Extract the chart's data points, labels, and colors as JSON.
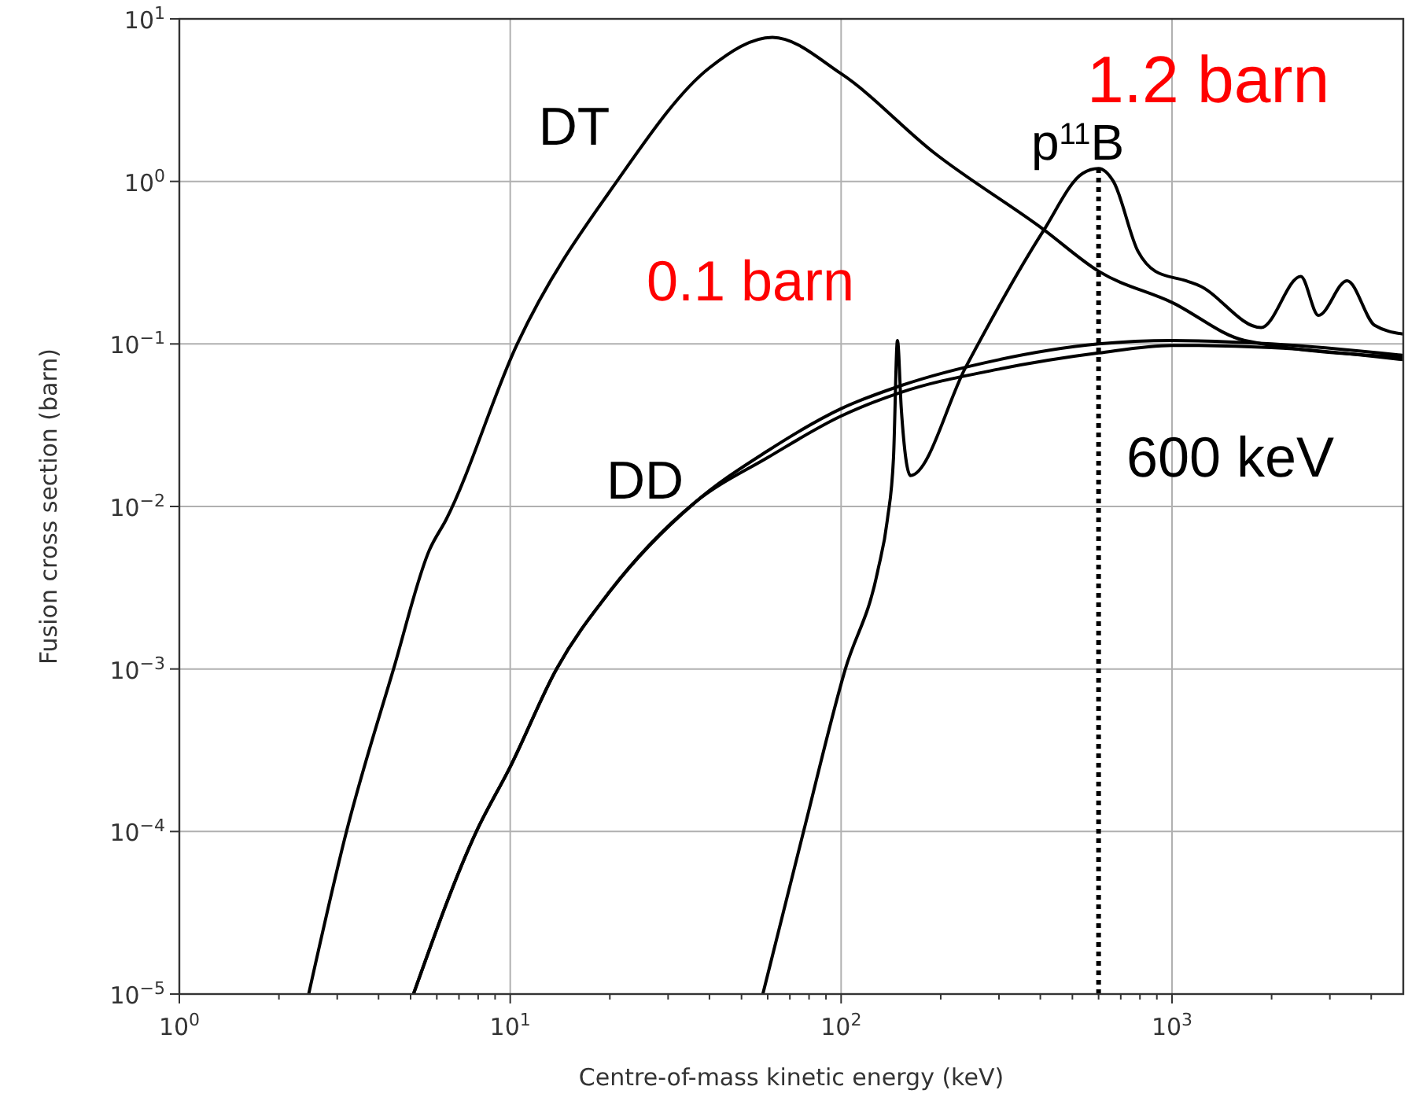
{
  "chart_data": {
    "type": "line",
    "xlabel": "Centre-of-mass kinetic energy (keV)",
    "ylabel": "Fusion cross section (barn)",
    "log": "xy",
    "grid": true,
    "legend": false,
    "marker": "none",
    "xlim": [
      1,
      5000
    ],
    "ylim": [
      1e-05,
      10
    ],
    "xticks": [
      {
        "value": 1,
        "label": "10$^{0}$"
      },
      {
        "value": 2,
        "label": null
      },
      {
        "value": 3,
        "label": null
      },
      {
        "value": 4,
        "label": null
      },
      {
        "value": 5,
        "label": null
      },
      {
        "value": 6,
        "label": null
      },
      {
        "value": 7,
        "label": null
      },
      {
        "value": 8,
        "label": null
      },
      {
        "value": 9,
        "label": null
      },
      {
        "value": 10,
        "label": "10$^{1}$"
      },
      {
        "value": 20,
        "label": null
      },
      {
        "value": 30,
        "label": null
      },
      {
        "value": 40,
        "label": null
      },
      {
        "value": 50,
        "label": null
      },
      {
        "value": 60,
        "label": null
      },
      {
        "value": 70,
        "label": null
      },
      {
        "value": 80,
        "label": null
      },
      {
        "value": 90,
        "label": null
      },
      {
        "value": 100,
        "label": "10$^{2}$"
      },
      {
        "value": 200,
        "label": null
      },
      {
        "value": 300,
        "label": null
      },
      {
        "value": 400,
        "label": null
      },
      {
        "value": 500,
        "label": null
      },
      {
        "value": 600,
        "label": null
      },
      {
        "value": 700,
        "label": null
      },
      {
        "value": 800,
        "label": null
      },
      {
        "value": 900,
        "label": null
      },
      {
        "value": 1000,
        "label": "10$^{3}$"
      },
      {
        "value": 2000,
        "label": null
      },
      {
        "value": 3000,
        "label": null
      },
      {
        "value": 4000,
        "label": null
      }
    ],
    "yticks": [
      {
        "value": 1e-05,
        "label": "10$^{−5}$"
      },
      {
        "value": 0.0001,
        "label": "10$^{−4}$"
      },
      {
        "value": 0.001,
        "label": "10$^{−3}$"
      },
      {
        "value": 0.01,
        "label": "10$^{−2}$"
      },
      {
        "value": 0.1,
        "label": "10$^{−1}$"
      },
      {
        "value": 1,
        "label": "10$^{0}$"
      },
      {
        "value": 10,
        "label": "10$^{1}$"
      }
    ],
    "series": [
      {
        "name": "DT",
        "color": "#000000",
        "x": [
          2.46,
          3.2,
          4.44,
          5.7,
          6.4,
          10.5,
          21,
          40,
          62,
          100,
          191,
          407,
          600,
          1000,
          1660,
          5000
        ],
        "values": [
          1e-05,
          0.0001,
          0.001,
          0.0054,
          0.0083,
          0.1,
          1.0,
          5.0,
          7.7,
          4.6,
          1.5,
          0.51,
          0.28,
          0.18,
          0.105,
          0.083
        ]
      },
      {
        "name": "DD",
        "color": "#000000",
        "x": [
          5.1,
          7.9,
          10,
          13.8,
          20,
          36,
          60,
          100,
          150,
          300,
          600,
          1000,
          2000,
          5000
        ],
        "values": [
          1e-05,
          0.0001,
          0.00025,
          0.001,
          0.003,
          0.0105,
          0.022,
          0.04,
          0.055,
          0.08,
          0.1,
          0.105,
          0.1,
          0.085
        ]
      },
      {
        "color": "#000000",
        "x": [
          5.1,
          7.9,
          10,
          13.8,
          20,
          36,
          60,
          100,
          150,
          300,
          600,
          1000,
          2000,
          5000
        ],
        "values": [
          1e-05,
          0.0001,
          0.00025,
          0.001,
          0.003,
          0.0105,
          0.02,
          0.036,
          0.05,
          0.07,
          0.088,
          0.098,
          0.095,
          0.08
        ]
      },
      {
        "name": "p$^{11}$B",
        "color": "#000000",
        "x": [
          58,
          77,
          103,
          129,
          138,
          144,
          148,
          152,
          162,
          238,
          407,
          537,
          600,
          665,
          790,
          890,
          1100,
          1200,
          1860,
          2450,
          2770,
          3380,
          4100,
          5000
        ],
        "values": [
          1e-05,
          0.0001,
          0.001,
          0.004,
          0.0083,
          0.02,
          0.105,
          0.04,
          0.0155,
          0.072,
          0.49,
          1.12,
          1.2,
          1.0,
          0.37,
          0.28,
          0.245,
          0.23,
          0.126,
          0.26,
          0.15,
          0.245,
          0.13,
          0.115
        ]
      },
      {
        "color": "#000000",
        "line_style": "dotted",
        "x": [
          600,
          600
        ],
        "values": [
          1e-05,
          1.2
        ]
      }
    ],
    "annotations": [
      "1.2 barn",
      "0.1 barn",
      "600 keV"
    ]
  }
}
